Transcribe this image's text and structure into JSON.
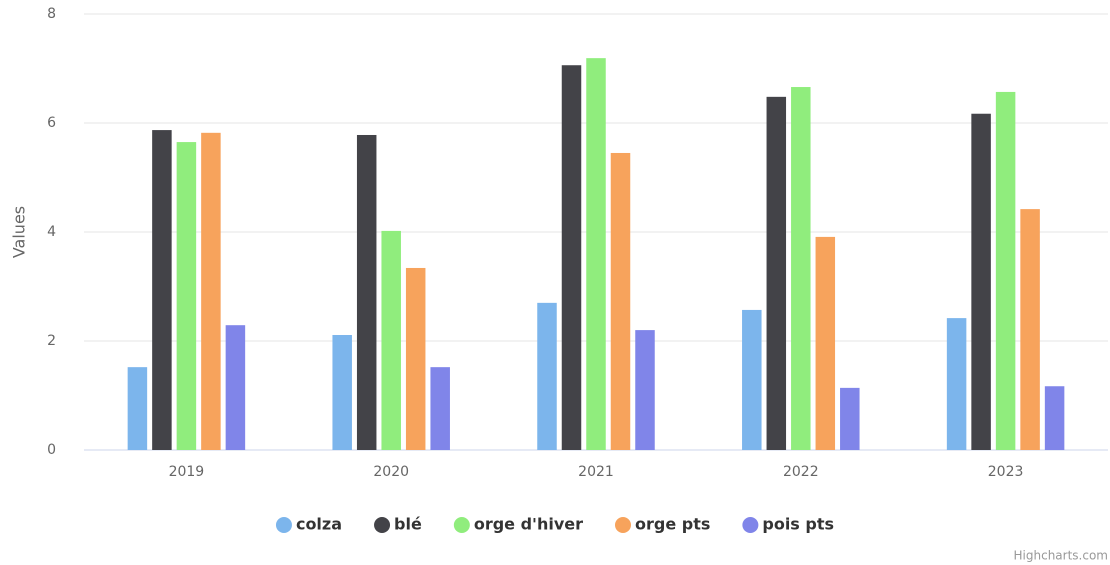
{
  "chart_data": {
    "type": "bar",
    "y_axis_label": "Values",
    "categories": [
      "2019",
      "2020",
      "2021",
      "2022",
      "2023"
    ],
    "series": [
      {
        "name": "colza",
        "color": "#7cb5ec",
        "values": [
          1.52,
          2.11,
          2.7,
          2.57,
          2.42
        ]
      },
      {
        "name": "blé",
        "color": "#434348",
        "values": [
          5.87,
          5.78,
          7.06,
          6.48,
          6.17
        ]
      },
      {
        "name": "orge d'hiver",
        "color": "#90ed7d",
        "values": [
          5.65,
          4.02,
          7.19,
          6.66,
          6.57
        ]
      },
      {
        "name": "orge pts",
        "color": "#f7a35c",
        "values": [
          5.82,
          3.34,
          5.45,
          3.91,
          4.42
        ]
      },
      {
        "name": "pois pts",
        "color": "#8085e9",
        "values": [
          2.29,
          1.52,
          2.2,
          1.14,
          1.17
        ]
      }
    ],
    "ylim": [
      0,
      8
    ],
    "yticks": [
      0,
      2,
      4,
      6,
      8
    ],
    "grid": true,
    "legend": "bottom",
    "credits": "Highcharts.com"
  }
}
